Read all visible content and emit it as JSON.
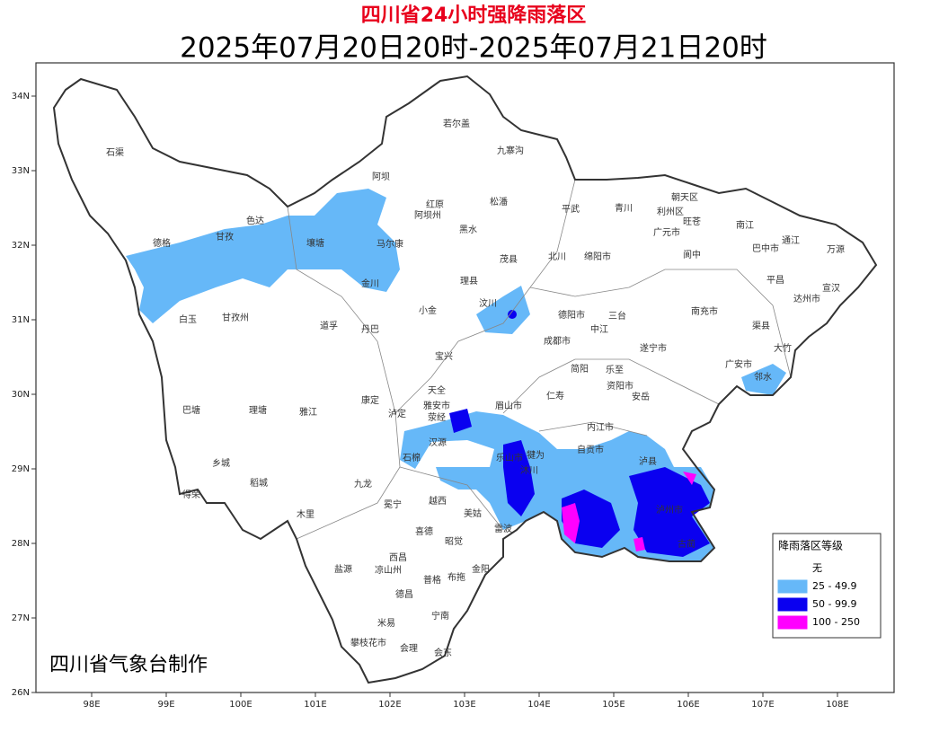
{
  "title": "四川省24小时强降雨落区",
  "subtitle": "2025年07月20日20时-2025年07月21日20时",
  "credit": "四川省气象台制作",
  "legend": {
    "title": "降雨落区等级",
    "items": [
      {
        "label": "无",
        "color": "#ffffff"
      },
      {
        "label": "25 - 49.9",
        "color": "#66b8f8"
      },
      {
        "label": "50 - 99.9",
        "color": "#0a00f0"
      },
      {
        "label": "100 - 250",
        "color": "#ff00ff"
      }
    ]
  },
  "axes": {
    "lat_ticks": [
      {
        "value": 34,
        "label": "34N"
      },
      {
        "value": 33,
        "label": "33N"
      },
      {
        "value": 32,
        "label": "32N"
      },
      {
        "value": 31,
        "label": "31N"
      },
      {
        "value": 30,
        "label": "30N"
      },
      {
        "value": 29,
        "label": "29N"
      },
      {
        "value": 28,
        "label": "28N"
      },
      {
        "value": 27,
        "label": "27N"
      },
      {
        "value": 26,
        "label": "26N"
      }
    ],
    "lon_ticks": [
      {
        "value": 98,
        "label": "98E"
      },
      {
        "value": 99,
        "label": "99E"
      },
      {
        "value": 100,
        "label": "100E"
      },
      {
        "value": 101,
        "label": "101E"
      },
      {
        "value": 102,
        "label": "102E"
      },
      {
        "value": 103,
        "label": "103E"
      },
      {
        "value": 104,
        "label": "104E"
      },
      {
        "value": 105,
        "label": "105E"
      },
      {
        "value": 106,
        "label": "106E"
      },
      {
        "value": 107,
        "label": "107E"
      },
      {
        "value": 108,
        "label": "108E"
      }
    ]
  },
  "places": [
    "石渠",
    "德格",
    "甘孜",
    "色达",
    "白玉",
    "甘孜州",
    "道孚",
    "丹巴",
    "巴塘",
    "理塘",
    "雅江",
    "康定",
    "乡城",
    "稻城",
    "得荣",
    "九龙",
    "木里",
    "盐源",
    "凉山州",
    "西昌",
    "德昌",
    "米易",
    "攀枝花市",
    "会理",
    "会东",
    "宁南",
    "普格",
    "布拖",
    "金阳",
    "昭觉",
    "喜德",
    "冕宁",
    "越西",
    "美姑",
    "雷波",
    "石棉",
    "泸定",
    "天全",
    "雅安市",
    "荥经",
    "汉源",
    "宝兴",
    "小金",
    "金川",
    "马尔康",
    "阿坝州",
    "阿坝",
    "红原",
    "若尔盖",
    "九寨沟",
    "松潘",
    "黑水",
    "理县",
    "茂县",
    "汶川",
    "壤塘",
    "平武",
    "青川",
    "北川",
    "绵阳市",
    "广元市",
    "朝天区",
    "利州区",
    "旺苍",
    "南江",
    "巴中市",
    "通江",
    "万源",
    "宣汉",
    "达州市",
    "平昌",
    "渠县",
    "大竹",
    "邻水",
    "广安市",
    "南充市",
    "阆中",
    "三台",
    "遂宁市",
    "德阳市",
    "成都市",
    "眉山市",
    "乐山市",
    "资阳市",
    "内江市",
    "自贡市",
    "泸州市",
    "简阳",
    "安岳",
    "仁寿",
    "犍为",
    "沐川",
    "古蔺",
    "泸县",
    "乐至",
    "中江"
  ]
}
